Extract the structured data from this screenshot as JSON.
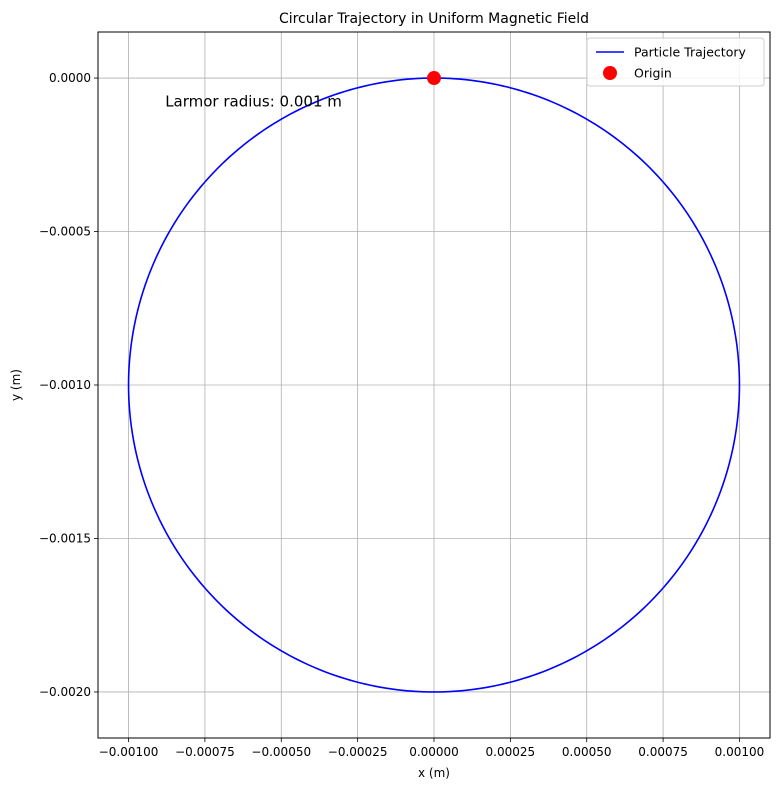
{
  "chart_data": {
    "type": "line",
    "title": "Circular Trajectory in Uniform Magnetic Field",
    "xlabel": "x (m)",
    "ylabel": "y (m)",
    "xlim": [
      -0.0011,
      0.0011
    ],
    "ylim": [
      -0.00215,
      0.00015
    ],
    "xticks": [
      -0.001,
      -0.00075,
      -0.0005,
      -0.00025,
      0.0,
      0.00025,
      0.0005,
      0.00075,
      0.001
    ],
    "xtick_labels": [
      "−0.00100",
      "−0.00075",
      "−0.00050",
      "−0.00025",
      "0.00000",
      "0.00025",
      "0.00050",
      "0.00075",
      "0.00100"
    ],
    "yticks": [
      0.0,
      -0.0005,
      -0.001,
      -0.0015,
      -0.002
    ],
    "ytick_labels": [
      "0.0000",
      "−0.0005",
      "−0.0010",
      "−0.0015",
      "−0.0020"
    ],
    "grid": true,
    "legend_position": "top-right",
    "series": [
      {
        "name": "Particle Trajectory",
        "type": "line",
        "color": "#0000ff",
        "center": [
          0.0,
          -0.001
        ],
        "radius": 0.001
      },
      {
        "name": "Origin",
        "type": "scatter",
        "color": "#ff0000",
        "x": [
          0.0
        ],
        "y": [
          0.0
        ]
      }
    ],
    "annotations": [
      {
        "text": "Larmor radius: 0.001 m",
        "x": -0.00088,
        "y": -8e-05
      }
    ]
  }
}
